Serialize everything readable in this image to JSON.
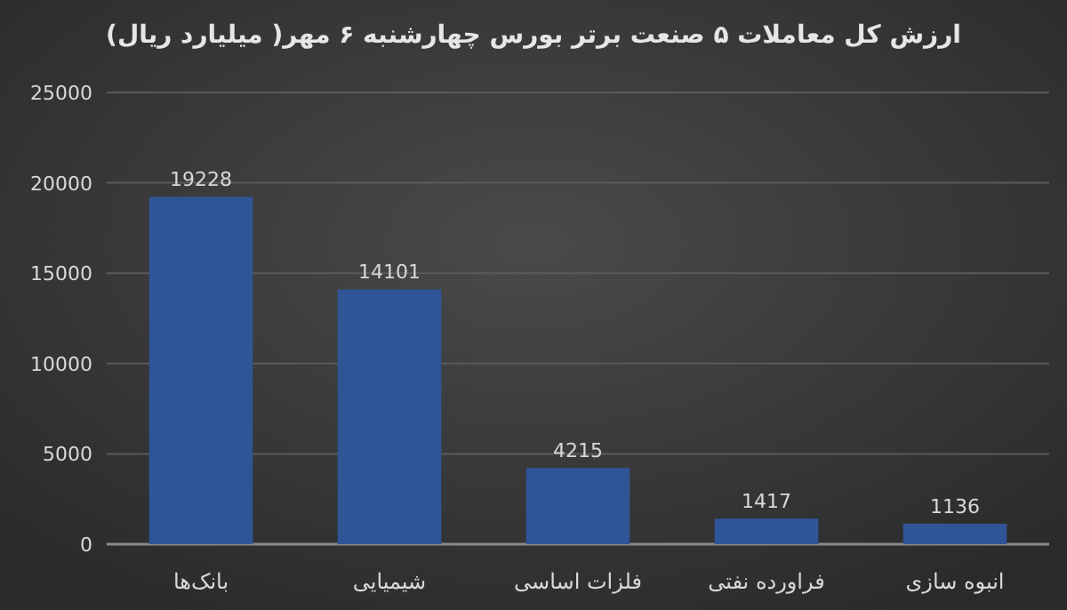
{
  "chart_data": {
    "type": "bar",
    "title": "ارزش کل معاملات ۵ صنعت برتر بورس چهارشنبه ۶ مهر( میلیارد ریال)",
    "categories": [
      "بانک‌ها",
      "شیمیایی",
      "فلزات اساسی",
      "فراورده نفتی",
      "انبوه سازی"
    ],
    "values": [
      19228,
      14101,
      4215,
      1417,
      1136
    ],
    "color": "#2f5597",
    "ylim": [
      0,
      25000
    ],
    "yticks": [
      0,
      5000,
      10000,
      15000,
      20000,
      25000
    ],
    "grid": "y",
    "data_labels": true
  }
}
